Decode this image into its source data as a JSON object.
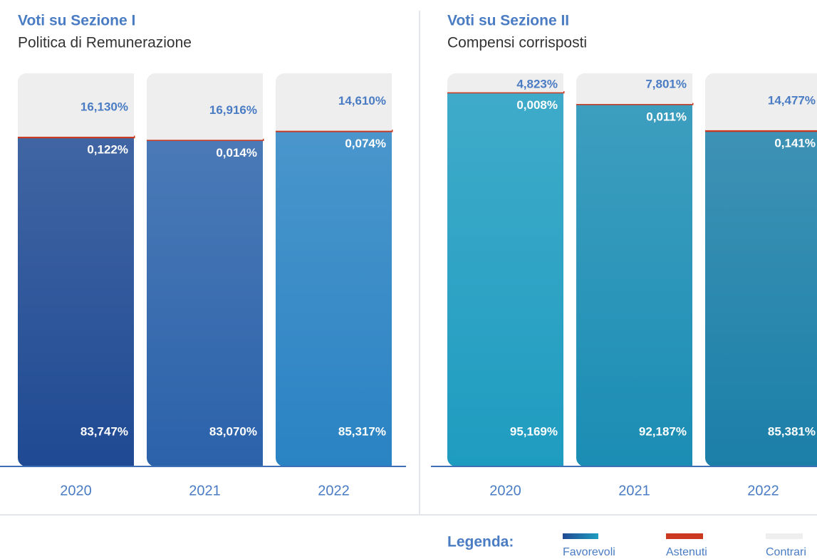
{
  "chart_data": [
    {
      "type": "bar",
      "stacked": true,
      "title": "Voti su Sezione I",
      "subtitle": "Politica di Remunerazione",
      "categories": [
        "2020",
        "2021",
        "2022"
      ],
      "ylim": [
        0,
        100
      ],
      "series": [
        {
          "name": "Favorevoli",
          "color": "#2a62aa",
          "colors": [
            "#1f4a93",
            "#2b62aa",
            "#2a83c3"
          ],
          "values": [
            83.747,
            83.07,
            85.317
          ],
          "value_labels": [
            "83,747%",
            "83,070%",
            "85,317%"
          ]
        },
        {
          "name": "Astenuti",
          "color": "#c9381f",
          "values": [
            0.122,
            0.014,
            0.074
          ],
          "value_labels": [
            "0,122%",
            "0,014%",
            "0,074%"
          ]
        },
        {
          "name": "Contrari",
          "color": "#eeeeee",
          "values": [
            16.13,
            16.916,
            14.61
          ],
          "value_labels": [
            "16,130%",
            "16,916%",
            "14,610%"
          ]
        }
      ]
    },
    {
      "type": "bar",
      "stacked": true,
      "title": "Voti su Sezione II",
      "subtitle": "Compensi corrisposti",
      "categories": [
        "2020",
        "2021",
        "2022"
      ],
      "ylim": [
        0,
        100
      ],
      "series": [
        {
          "name": "Favorevoli",
          "color": "#1b8db4",
          "colors": [
            "#1e9cc0",
            "#1b8db4",
            "#1b7fa8"
          ],
          "values": [
            95.169,
            92.187,
            85.381
          ],
          "value_labels": [
            "95,169%",
            "92,187%",
            "85,381%"
          ]
        },
        {
          "name": "Astenuti",
          "color": "#c9381f",
          "values": [
            0.008,
            0.011,
            0.141
          ],
          "value_labels": [
            "0,008%",
            "0,011%",
            "0,141%"
          ]
        },
        {
          "name": "Contrari",
          "color": "#eeeeee",
          "values": [
            4.823,
            7.801,
            14.477
          ],
          "value_labels": [
            "4,823%",
            "7,801%",
            "14,477%"
          ]
        }
      ]
    }
  ],
  "legend_title": "Legenda:"
}
